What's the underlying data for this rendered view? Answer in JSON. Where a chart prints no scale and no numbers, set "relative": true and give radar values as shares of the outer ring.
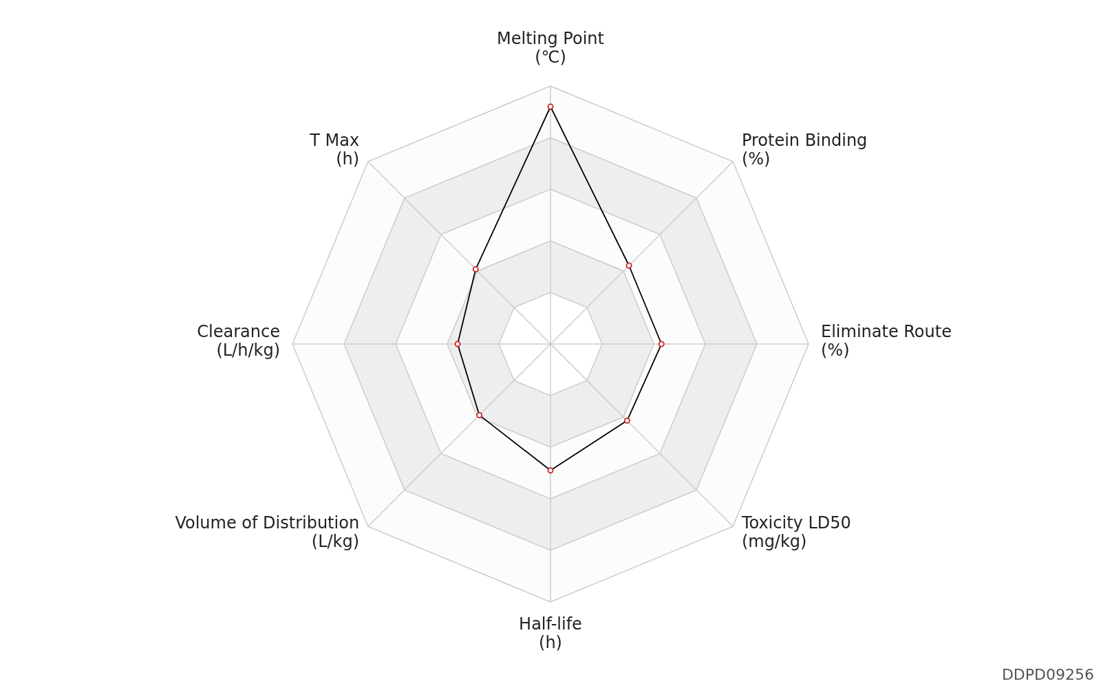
{
  "chart_data": {
    "type": "radar",
    "relative": true,
    "grid": true,
    "marker": "circle",
    "categories": [
      "Melting Point\n(℃)",
      "Protein Binding\n(%)",
      "Eliminate Route\n(%)",
      "Toxicity LD50\n(mg/kg)",
      "Half-life\n(h)",
      "Volume of Distribution\n(L/kg)",
      "Clearance\n(L/h/kg)",
      "T Max\n(h)"
    ],
    "series": [
      {
        "color": "#000000",
        "values": [
          0.92,
          0.43,
          0.43,
          0.42,
          0.49,
          0.39,
          0.36,
          0.41
        ]
      }
    ],
    "annotations": [
      "DDPD09256"
    ]
  }
}
